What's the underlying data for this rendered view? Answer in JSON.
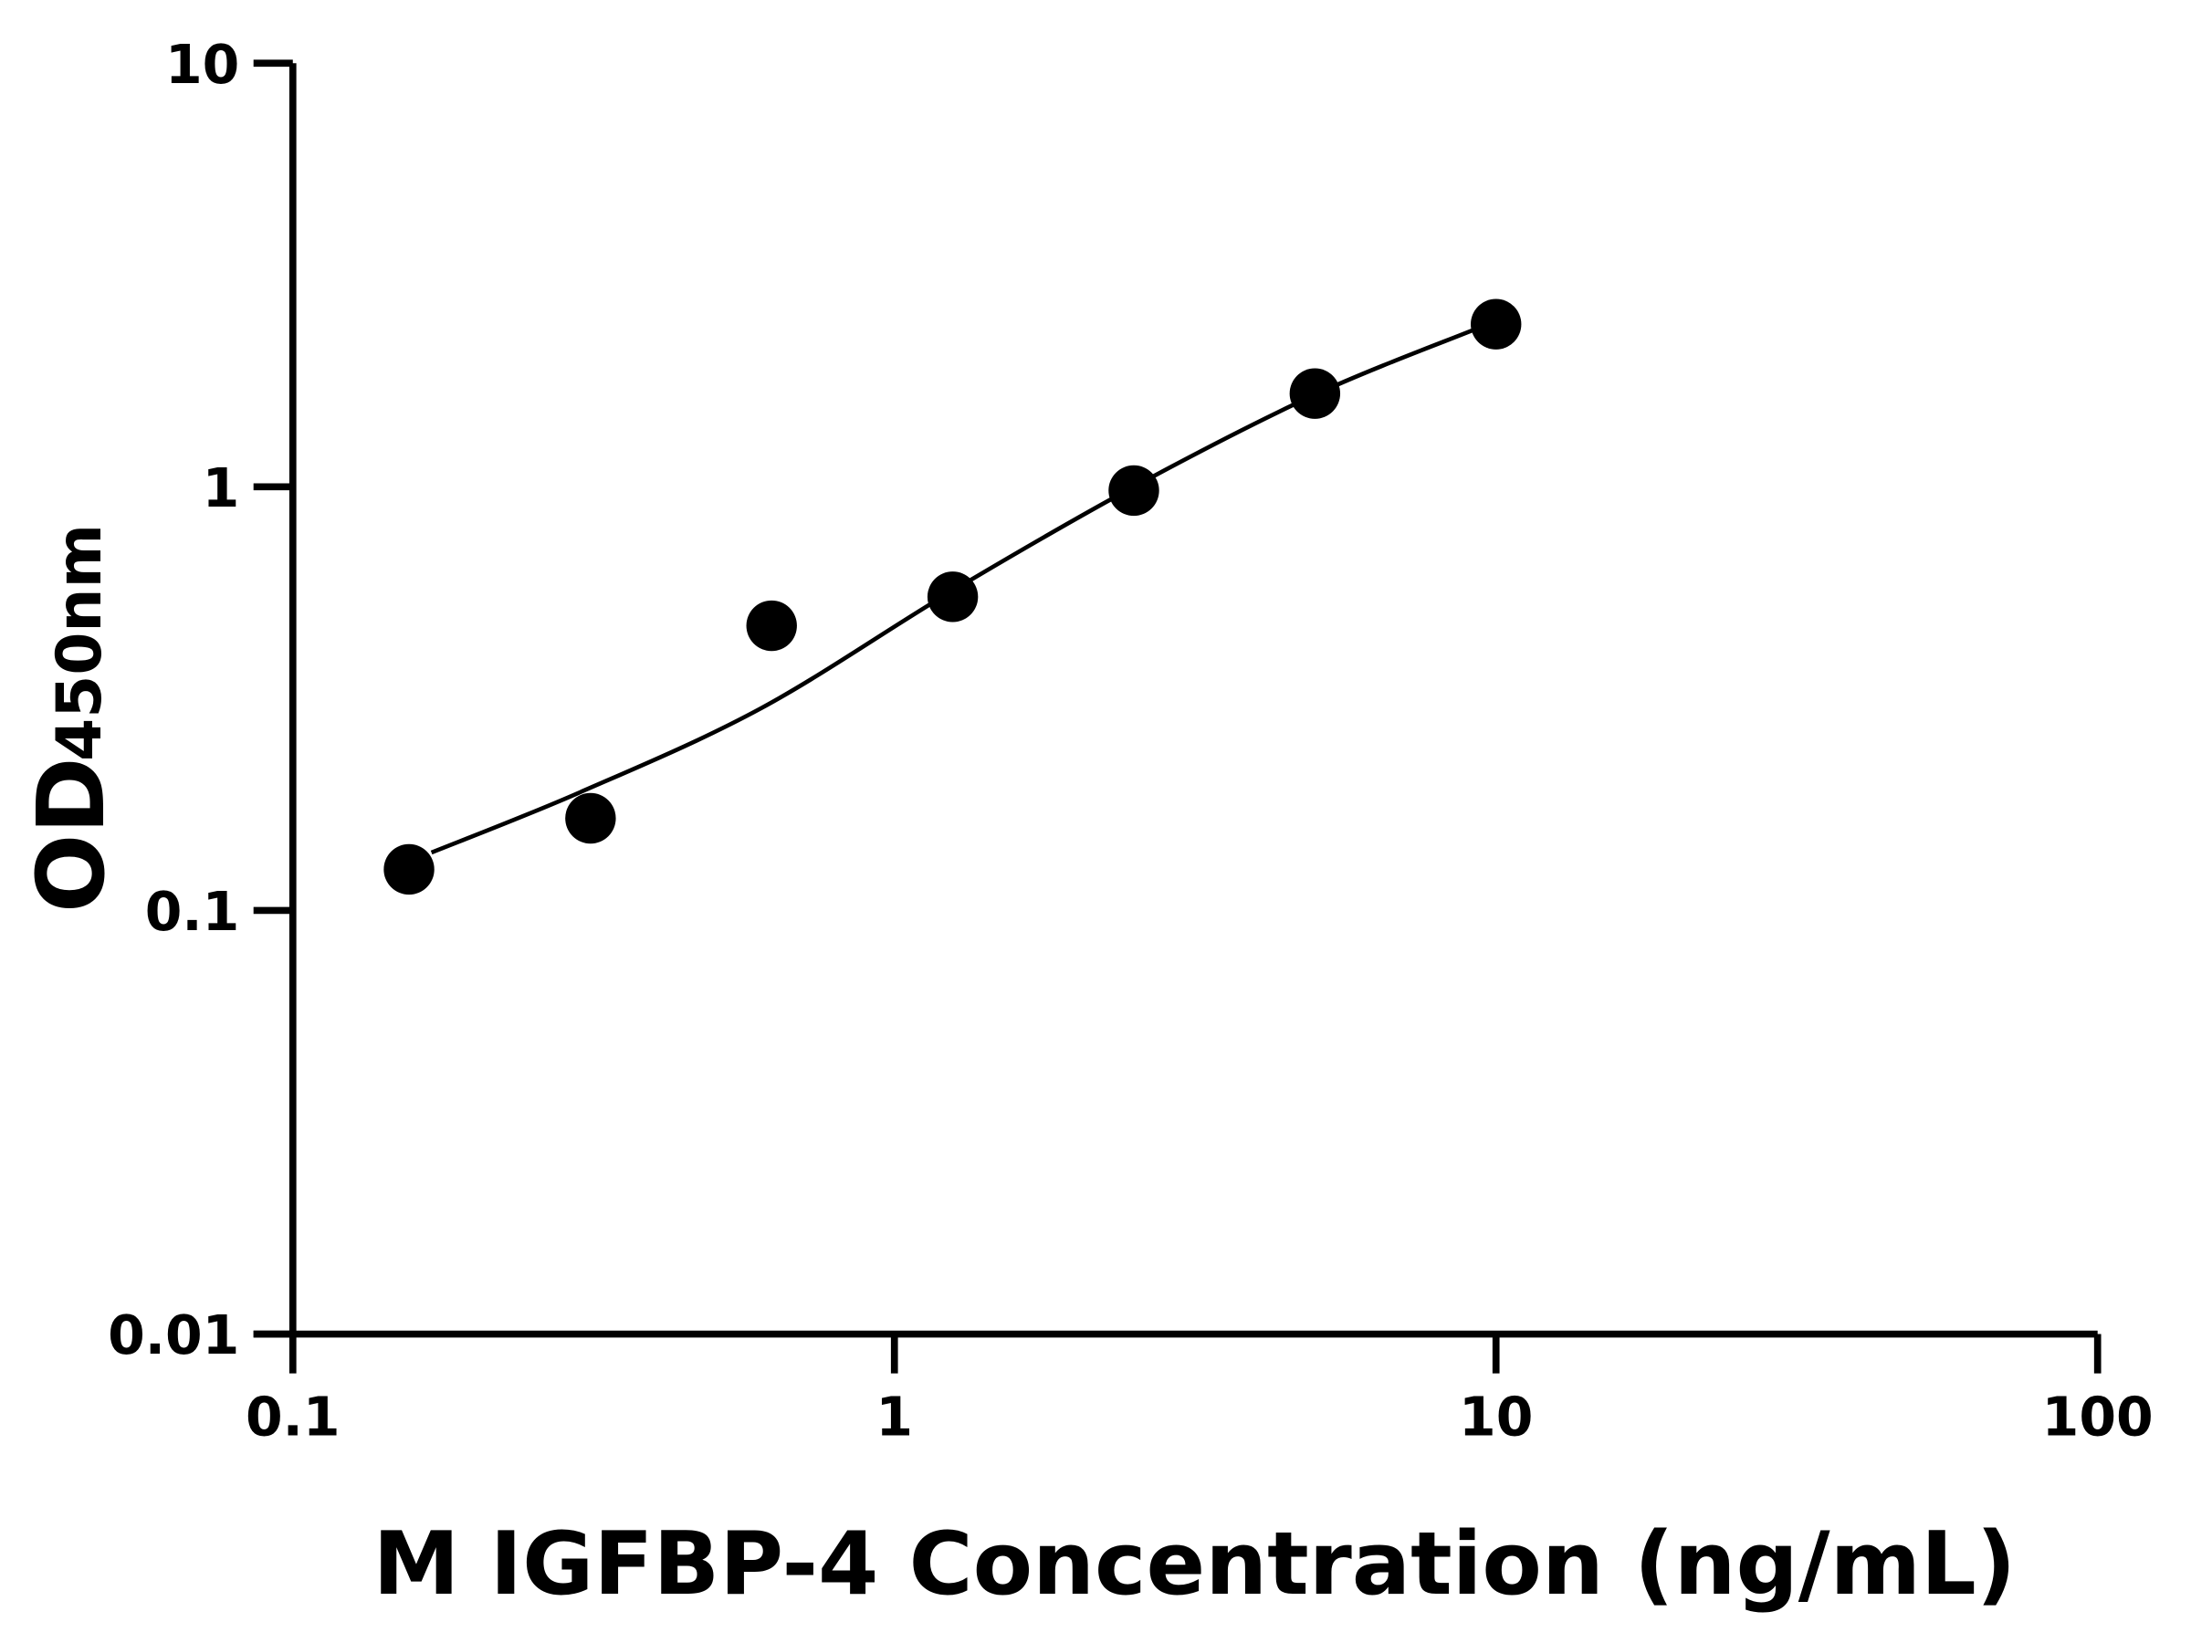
{
  "chart_data": {
    "type": "scatter",
    "xlabel": "M IGFBP-4 Concentration (ng/mL)",
    "ylabel_main": "OD",
    "ylabel_sub": "450nm",
    "x_scale": "log",
    "y_scale": "log",
    "xlim": [
      0.1,
      100
    ],
    "ylim": [
      0.01,
      10
    ],
    "x_ticks": [
      0.1,
      1,
      10,
      100
    ],
    "x_tick_labels": [
      "0.1",
      "1",
      "10",
      "100"
    ],
    "y_ticks": [
      0.01,
      0.1,
      1,
      10
    ],
    "y_tick_labels": [
      "0.01",
      "0.1",
      "1",
      "10"
    ],
    "grid": false,
    "points": [
      {
        "x": 0.156,
        "y": 0.125
      },
      {
        "x": 0.3125,
        "y": 0.165
      },
      {
        "x": 0.625,
        "y": 0.47
      },
      {
        "x": 1.25,
        "y": 0.55
      },
      {
        "x": 2.5,
        "y": 0.98
      },
      {
        "x": 5,
        "y": 1.66
      },
      {
        "x": 10,
        "y": 2.42
      }
    ],
    "fit_curve": [
      {
        "x": 0.17,
        "y": 0.137
      },
      {
        "x": 0.3,
        "y": 0.19
      },
      {
        "x": 0.6,
        "y": 0.3
      },
      {
        "x": 1.24,
        "y": 0.565
      },
      {
        "x": 2.5,
        "y": 1.0
      },
      {
        "x": 5,
        "y": 1.65
      },
      {
        "x": 9.2,
        "y": 2.35
      }
    ],
    "point_color": "#000000",
    "line_color": "#000000"
  }
}
